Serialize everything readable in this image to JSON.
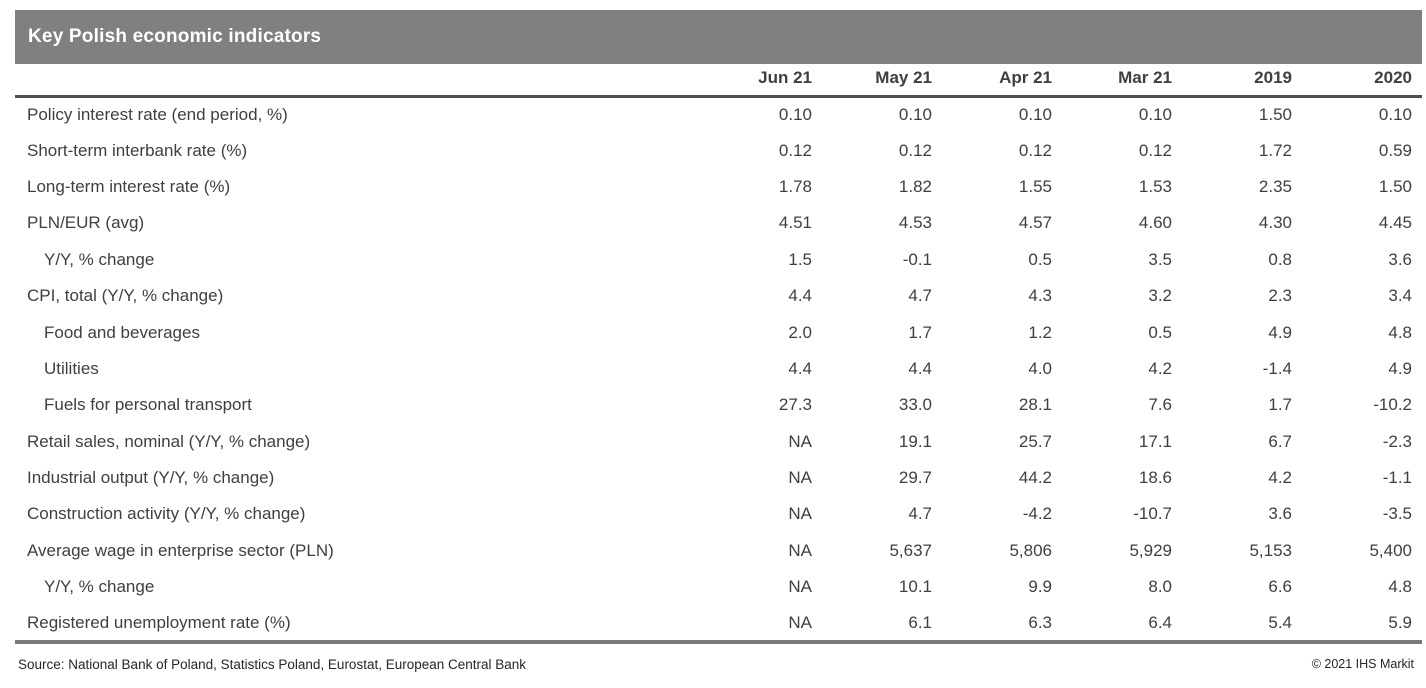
{
  "chart_data": {
    "type": "table",
    "title": "Key Polish economic indicators",
    "columns": [
      "Jun 21",
      "May 21",
      "Apr 21",
      "Mar 21",
      "2019",
      "2020"
    ],
    "rows": [
      {
        "label": "Policy interest rate (end period, %)",
        "indent": false,
        "values": [
          "0.10",
          "0.10",
          "0.10",
          "0.10",
          "1.50",
          "0.10"
        ]
      },
      {
        "label": "Short-term interbank rate (%)",
        "indent": false,
        "values": [
          "0.12",
          "0.12",
          "0.12",
          "0.12",
          "1.72",
          "0.59"
        ]
      },
      {
        "label": "Long-term interest rate (%)",
        "indent": false,
        "values": [
          "1.78",
          "1.82",
          "1.55",
          "1.53",
          "2.35",
          "1.50"
        ]
      },
      {
        "label": "PLN/EUR (avg)",
        "indent": false,
        "values": [
          "4.51",
          "4.53",
          "4.57",
          "4.60",
          "4.30",
          "4.45"
        ]
      },
      {
        "label": "Y/Y, % change",
        "indent": true,
        "values": [
          "1.5",
          "-0.1",
          "0.5",
          "3.5",
          "0.8",
          "3.6"
        ]
      },
      {
        "label": "CPI, total (Y/Y, % change)",
        "indent": false,
        "values": [
          "4.4",
          "4.7",
          "4.3",
          "3.2",
          "2.3",
          "3.4"
        ]
      },
      {
        "label": "Food and beverages",
        "indent": true,
        "values": [
          "2.0",
          "1.7",
          "1.2",
          "0.5",
          "4.9",
          "4.8"
        ]
      },
      {
        "label": "Utilities",
        "indent": true,
        "values": [
          "4.4",
          "4.4",
          "4.0",
          "4.2",
          "-1.4",
          "4.9"
        ]
      },
      {
        "label": "Fuels for personal transport",
        "indent": true,
        "values": [
          "27.3",
          "33.0",
          "28.1",
          "7.6",
          "1.7",
          "-10.2"
        ]
      },
      {
        "label": "Retail sales, nominal (Y/Y, % change)",
        "indent": false,
        "values": [
          "NA",
          "19.1",
          "25.7",
          "17.1",
          "6.7",
          "-2.3"
        ]
      },
      {
        "label": "Industrial output (Y/Y, % change)",
        "indent": false,
        "values": [
          "NA",
          "29.7",
          "44.2",
          "18.6",
          "4.2",
          "-1.1"
        ]
      },
      {
        "label": "Construction activity (Y/Y, % change)",
        "indent": false,
        "values": [
          "NA",
          "4.7",
          "-4.2",
          "-10.7",
          "3.6",
          "-3.5"
        ]
      },
      {
        "label": "Average wage in enterprise sector (PLN)",
        "indent": false,
        "values": [
          "NA",
          "5,637",
          "5,806",
          "5,929",
          "5,153",
          "5,400"
        ]
      },
      {
        "label": "Y/Y, % change",
        "indent": true,
        "values": [
          "NA",
          "10.1",
          "9.9",
          "8.0",
          "6.6",
          "4.8"
        ]
      },
      {
        "label": "Registered unemployment rate (%)",
        "indent": false,
        "values": [
          "NA",
          "6.1",
          "6.3",
          "6.4",
          "5.4",
          "5.9"
        ]
      }
    ],
    "source": "Source: National Bank of Poland, Statistics Poland, Eurostat, European Central Bank",
    "copyright": "© 2021 IHS Markit",
    "layout": {
      "legend": "none",
      "grid": "horizontal rules only (header rule and bottom rule)"
    }
  },
  "colors": {
    "title_bar_bg": "#808080",
    "title_text": "#ffffff",
    "body_text": "#3f3f3f",
    "header_rule": "#4f4f4f",
    "bottom_rule": "#7a7a7a"
  }
}
